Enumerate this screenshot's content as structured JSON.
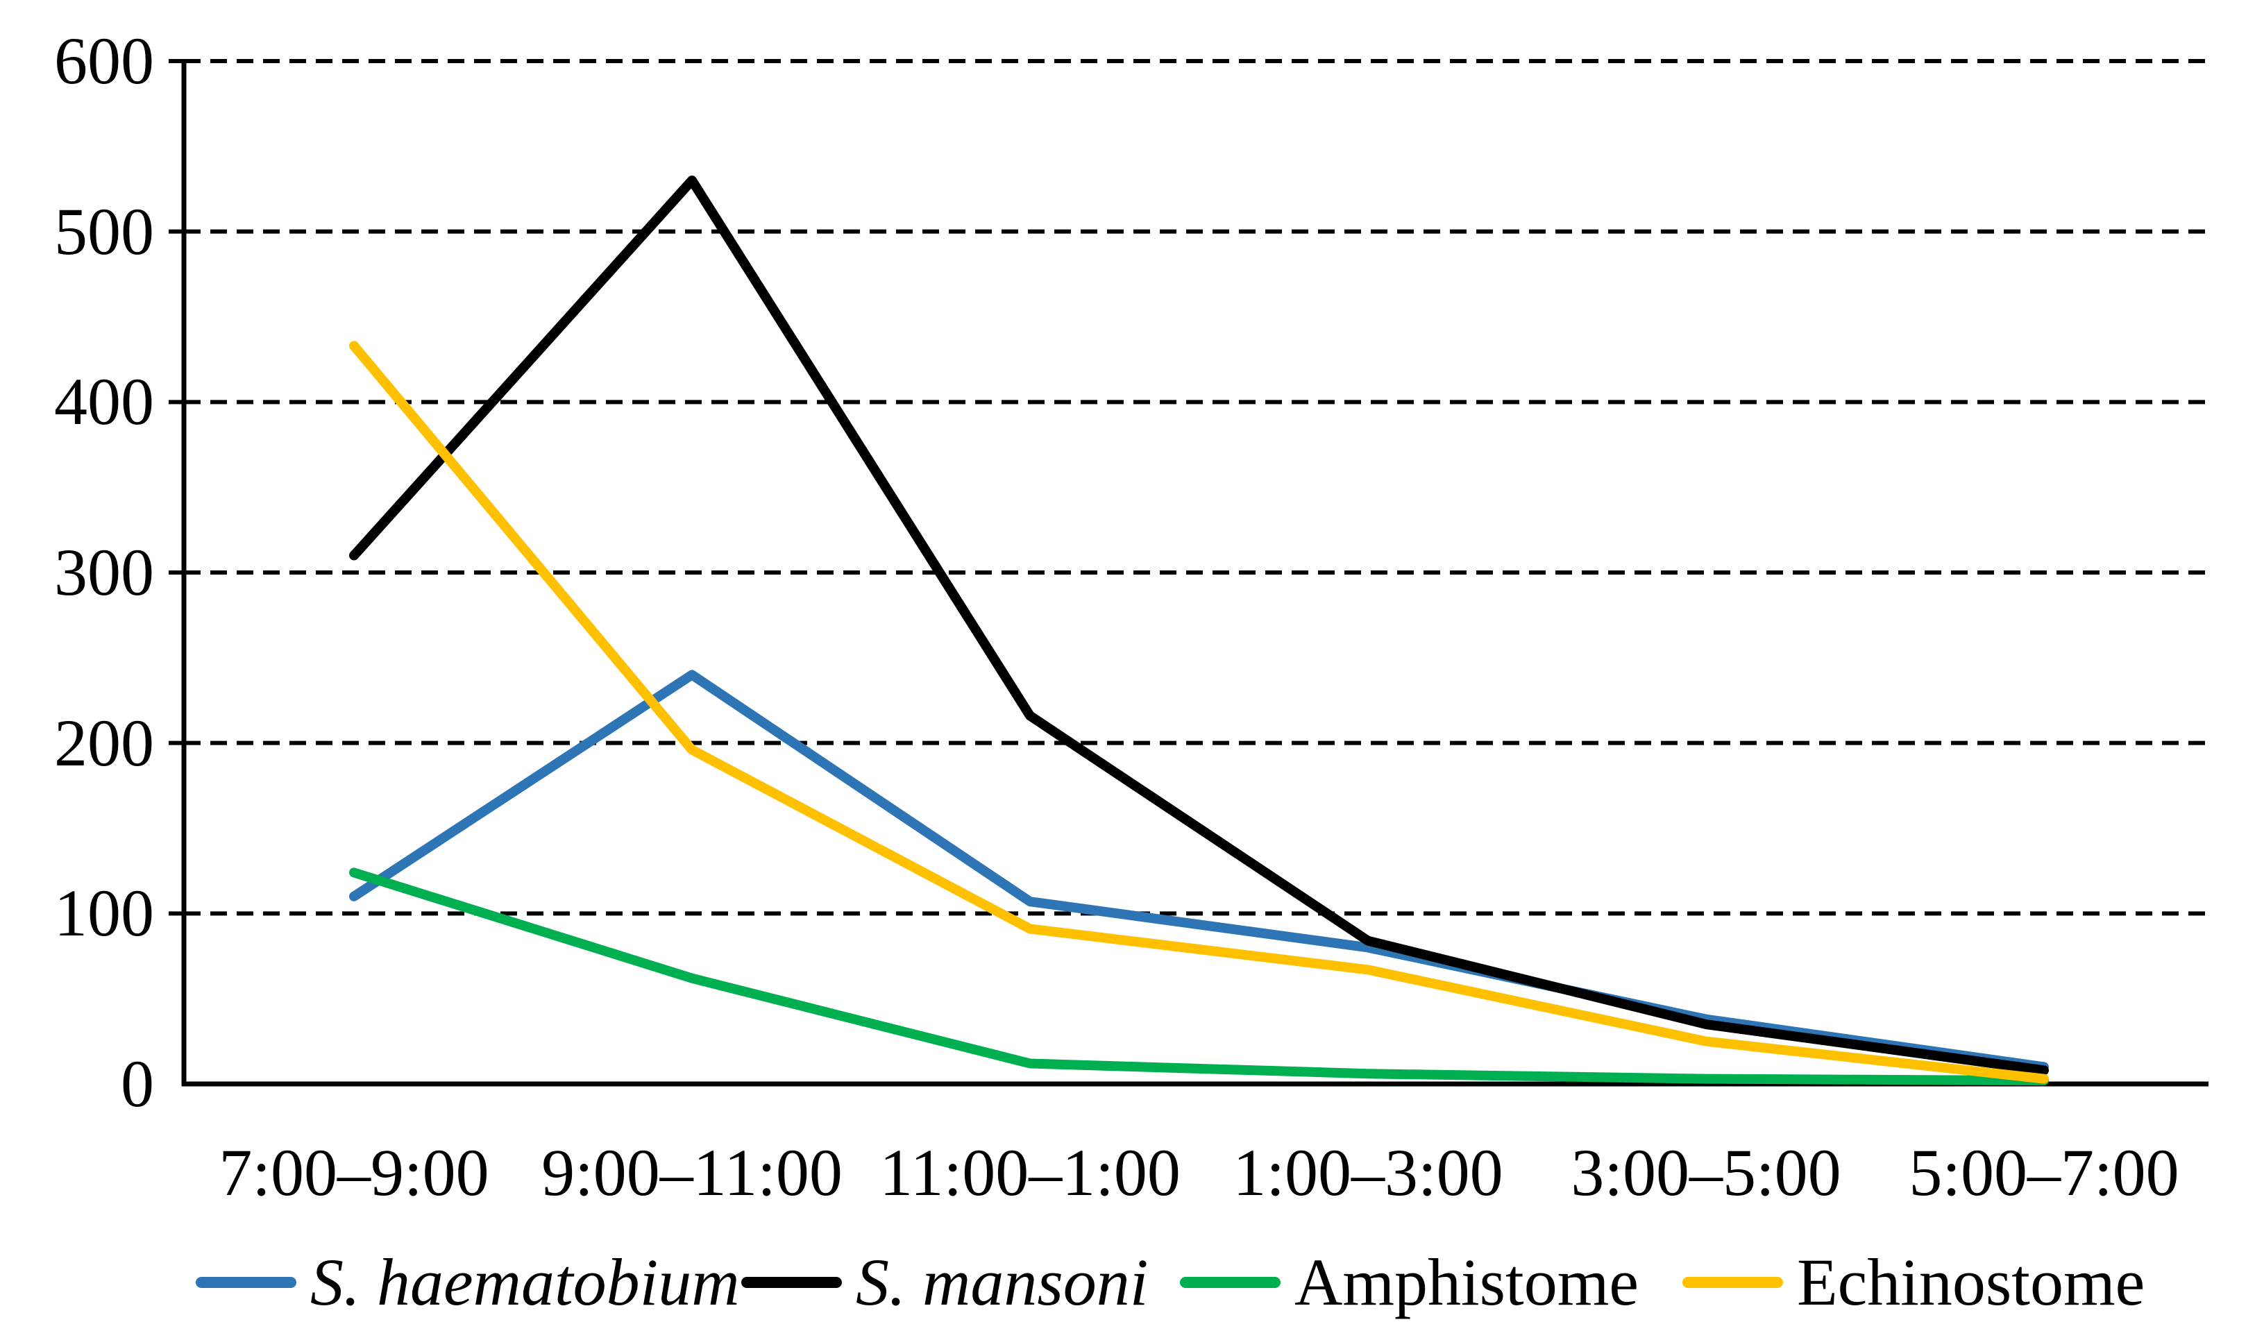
{
  "chart_data": {
    "type": "line",
    "title": "",
    "xlabel": "",
    "ylabel": "",
    "categories": [
      "7:00–9:00",
      "9:00–11:00",
      "11:00–1:00",
      "1:00–3:00",
      "3:00–5:00",
      "5:00–7:00"
    ],
    "series": [
      {
        "name": "S. haematobium",
        "color": "#2E75B6",
        "label_style": "italic",
        "values": [
          110,
          240,
          107,
          80,
          38,
          10
        ]
      },
      {
        "name": "S. mansoni",
        "color": "#000000",
        "label_style": "italic",
        "values": [
          310,
          530,
          216,
          84,
          35,
          8
        ]
      },
      {
        "name": "Amphistome",
        "color": "#00B050",
        "label_style": "normal",
        "values": [
          124,
          62,
          12,
          6,
          3,
          2
        ]
      },
      {
        "name": "Echinostome",
        "color": "#FFC000",
        "label_style": "normal",
        "values": [
          433,
          196,
          91,
          67,
          25,
          3
        ]
      }
    ],
    "ylim": [
      0,
      600
    ],
    "yticks": [
      0,
      100,
      200,
      300,
      400,
      500,
      600
    ],
    "grid": "horizontal-dashed",
    "legend_position": "bottom",
    "axis_color": "#000000",
    "gridline_color": "#000000",
    "background_color": "#FFFFFF"
  }
}
